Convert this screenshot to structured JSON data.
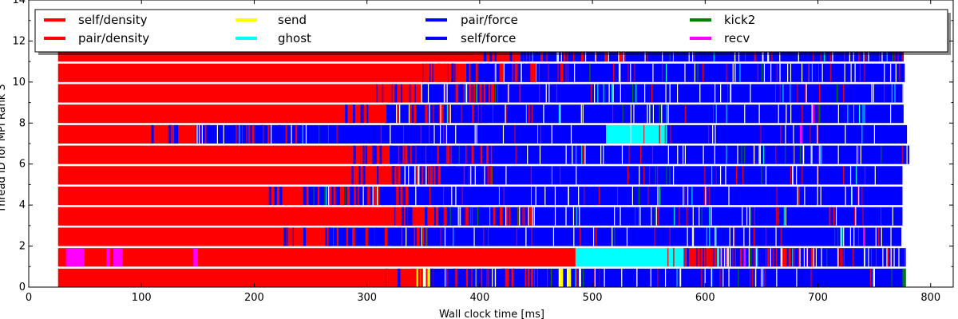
{
  "chart_data": {
    "type": "bar",
    "orientation": "horizontal-timeline",
    "xlabel": "Wall clock time [ms]",
    "ylabel": "Thread ID for MPI Rank 3",
    "xlim": [
      0,
      820
    ],
    "ylim": [
      0,
      14
    ],
    "xticks": [
      "0",
      "100",
      "200",
      "300",
      "400",
      "500",
      "600",
      "700",
      "800"
    ],
    "yticks": [
      "0",
      "2",
      "4",
      "6",
      "8",
      "10",
      "12",
      "14"
    ],
    "legend_placement": "top",
    "legend": [
      {
        "name": "self/density",
        "color": "#ff0000"
      },
      {
        "name": "pair/density",
        "color": "#ff0000"
      },
      {
        "name": "send",
        "color": "#ffff00"
      },
      {
        "name": "ghost",
        "color": "#00ffff"
      },
      {
        "name": "pair/force",
        "color": "#0000ff"
      },
      {
        "name": "self/force",
        "color": "#0000ff"
      },
      {
        "name": "kick2",
        "color": "#008000"
      },
      {
        "name": "recv",
        "color": "#ff00ff"
      }
    ],
    "threads": [
      {
        "id": 0,
        "start": 26,
        "end": 778,
        "segments": [
          {
            "task": "pair/density",
            "start": 26,
            "end": 344
          },
          {
            "task": "send",
            "start": 344,
            "end": 350
          },
          {
            "task": "send",
            "start": 352,
            "end": 356
          },
          {
            "task": "pair/force",
            "start": 356,
            "end": 778
          },
          {
            "task": "send",
            "start": 470,
            "end": 474
          },
          {
            "task": "send",
            "start": 478,
            "end": 481
          },
          {
            "task": "send",
            "start": 488,
            "end": 490
          },
          {
            "task": "kick2",
            "start": 775,
            "end": 778
          }
        ]
      },
      {
        "id": 1,
        "start": 26,
        "end": 778,
        "segments": [
          {
            "task": "pair/density",
            "start": 26,
            "end": 485
          },
          {
            "task": "recv",
            "start": 33,
            "end": 49
          },
          {
            "task": "recv",
            "start": 69,
            "end": 72
          },
          {
            "task": "recv",
            "start": 75,
            "end": 83
          },
          {
            "task": "recv",
            "start": 146,
            "end": 150
          },
          {
            "task": "ghost",
            "start": 485,
            "end": 585
          },
          {
            "task": "pair/density",
            "start": 585,
            "end": 606
          },
          {
            "task": "pair/force",
            "start": 606,
            "end": 778
          },
          {
            "task": "recv",
            "start": 634,
            "end": 636
          }
        ]
      },
      {
        "id": 2,
        "start": 26,
        "end": 774,
        "segments": [
          {
            "task": "pair/density",
            "start": 26,
            "end": 265
          },
          {
            "task": "pair/force",
            "start": 265,
            "end": 774
          },
          {
            "task": "recv",
            "start": 740,
            "end": 742
          }
        ]
      },
      {
        "id": 3,
        "start": 26,
        "end": 775,
        "segments": [
          {
            "task": "pair/density",
            "start": 26,
            "end": 363
          },
          {
            "task": "pair/force",
            "start": 363,
            "end": 775
          }
        ]
      },
      {
        "id": 4,
        "start": 26,
        "end": 775,
        "segments": [
          {
            "task": "pair/density",
            "start": 26,
            "end": 248
          },
          {
            "task": "pair/force",
            "start": 248,
            "end": 775
          }
        ]
      },
      {
        "id": 5,
        "start": 26,
        "end": 775,
        "segments": [
          {
            "task": "pair/density",
            "start": 26,
            "end": 326
          },
          {
            "task": "pair/force",
            "start": 326,
            "end": 775
          }
        ]
      },
      {
        "id": 6,
        "start": 26,
        "end": 781,
        "segments": [
          {
            "task": "pair/density",
            "start": 26,
            "end": 320
          },
          {
            "task": "pair/force",
            "start": 320,
            "end": 781
          }
        ]
      },
      {
        "id": 7,
        "start": 26,
        "end": 779,
        "segments": [
          {
            "task": "pair/density",
            "start": 26,
            "end": 148
          },
          {
            "task": "pair/force",
            "start": 148,
            "end": 512
          },
          {
            "task": "ghost",
            "start": 512,
            "end": 566
          },
          {
            "task": "pair/force",
            "start": 566,
            "end": 779
          },
          {
            "task": "recv",
            "start": 684,
            "end": 686
          }
        ]
      },
      {
        "id": 8,
        "start": 26,
        "end": 776,
        "segments": [
          {
            "task": "pair/density",
            "start": 26,
            "end": 318
          },
          {
            "task": "pair/force",
            "start": 318,
            "end": 776
          },
          {
            "task": "recv",
            "start": 695,
            "end": 697
          }
        ]
      },
      {
        "id": 9,
        "start": 26,
        "end": 776,
        "segments": [
          {
            "task": "pair/density",
            "start": 26,
            "end": 348
          },
          {
            "task": "pair/force",
            "start": 348,
            "end": 776
          }
        ]
      },
      {
        "id": 10,
        "start": 26,
        "end": 777,
        "segments": [
          {
            "task": "pair/density",
            "start": 26,
            "end": 388
          },
          {
            "task": "pair/force",
            "start": 388,
            "end": 777
          }
        ]
      },
      {
        "id": 11,
        "start": 26,
        "end": 776,
        "segments": [
          {
            "task": "pair/density",
            "start": 26,
            "end": 438
          },
          {
            "task": "pair/force",
            "start": 438,
            "end": 776
          }
        ]
      }
    ]
  }
}
